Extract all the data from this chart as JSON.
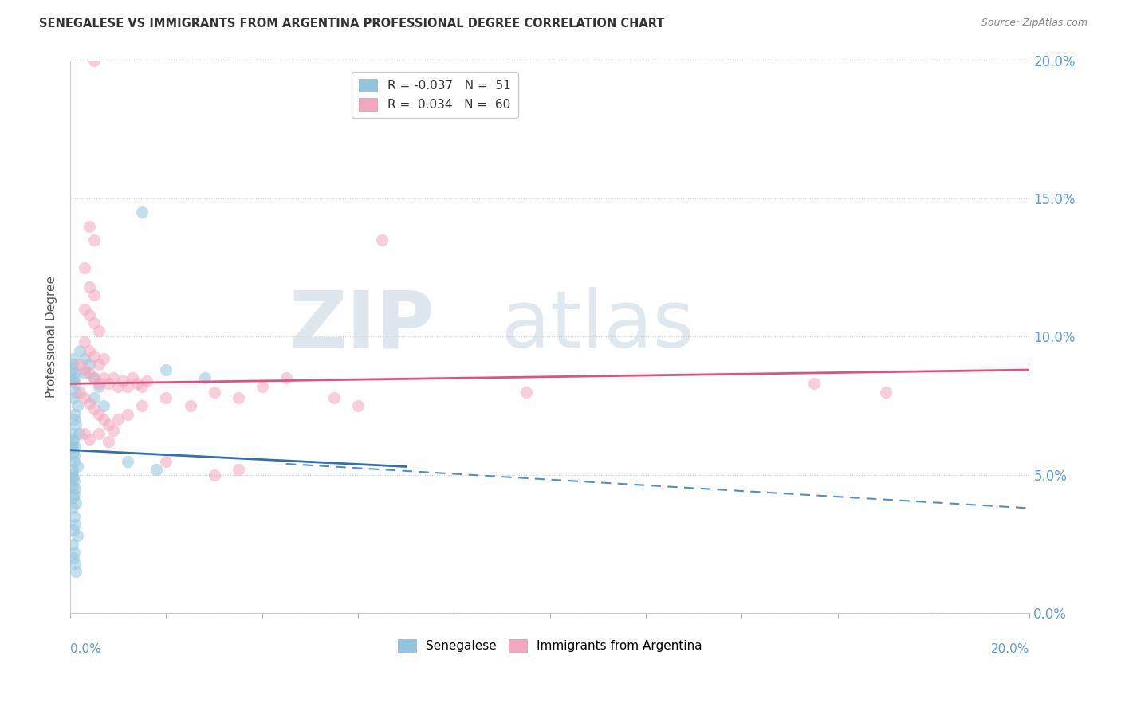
{
  "title": "SENEGALESE VS IMMIGRANTS FROM ARGENTINA PROFESSIONAL DEGREE CORRELATION CHART",
  "source": "Source: ZipAtlas.com",
  "ylabel": "Professional Degree",
  "ytick_vals": [
    0,
    5,
    10,
    15,
    20
  ],
  "watermark_zip": "ZIP",
  "watermark_atlas": "atlas",
  "blue_color": "#92c5de",
  "pink_color": "#f4a6be",
  "blue_scatter": [
    [
      0.05,
      8.8
    ],
    [
      0.08,
      8.5
    ],
    [
      0.1,
      8.3
    ],
    [
      0.12,
      8.0
    ],
    [
      0.06,
      7.8
    ],
    [
      0.15,
      7.5
    ],
    [
      0.1,
      7.2
    ],
    [
      0.08,
      7.0
    ],
    [
      0.12,
      6.8
    ],
    [
      0.18,
      6.5
    ],
    [
      0.05,
      6.2
    ],
    [
      0.1,
      6.0
    ],
    [
      0.06,
      5.8
    ],
    [
      0.08,
      5.5
    ],
    [
      0.15,
      5.3
    ],
    [
      0.05,
      5.0
    ],
    [
      0.08,
      4.8
    ],
    [
      0.1,
      4.5
    ],
    [
      0.06,
      4.2
    ],
    [
      0.12,
      4.0
    ],
    [
      0.05,
      3.8
    ],
    [
      0.08,
      3.5
    ],
    [
      0.1,
      3.2
    ],
    [
      0.06,
      3.0
    ],
    [
      0.15,
      2.8
    ],
    [
      0.05,
      2.5
    ],
    [
      0.08,
      2.2
    ],
    [
      0.06,
      2.0
    ],
    [
      0.1,
      1.8
    ],
    [
      0.12,
      1.5
    ],
    [
      0.05,
      9.2
    ],
    [
      0.06,
      9.0
    ],
    [
      0.08,
      8.7
    ],
    [
      0.04,
      8.4
    ],
    [
      0.05,
      6.5
    ],
    [
      0.06,
      6.3
    ],
    [
      0.04,
      6.0
    ],
    [
      0.08,
      5.7
    ],
    [
      0.05,
      5.2
    ],
    [
      0.06,
      4.9
    ],
    [
      0.04,
      4.6
    ],
    [
      0.08,
      4.3
    ],
    [
      0.2,
      9.5
    ],
    [
      0.3,
      9.2
    ],
    [
      0.4,
      9.0
    ],
    [
      0.3,
      8.7
    ],
    [
      0.5,
      8.5
    ],
    [
      0.6,
      8.2
    ],
    [
      0.5,
      7.8
    ],
    [
      0.7,
      7.5
    ],
    [
      1.5,
      14.5
    ],
    [
      2.0,
      8.8
    ],
    [
      2.8,
      8.5
    ],
    [
      1.2,
      5.5
    ],
    [
      1.8,
      5.2
    ]
  ],
  "pink_scatter": [
    [
      0.5,
      20.0
    ],
    [
      0.4,
      14.0
    ],
    [
      0.5,
      13.5
    ],
    [
      0.3,
      12.5
    ],
    [
      0.4,
      11.8
    ],
    [
      0.5,
      11.5
    ],
    [
      0.3,
      11.0
    ],
    [
      0.4,
      10.8
    ],
    [
      0.5,
      10.5
    ],
    [
      0.6,
      10.2
    ],
    [
      0.3,
      9.8
    ],
    [
      0.4,
      9.5
    ],
    [
      0.5,
      9.3
    ],
    [
      0.6,
      9.0
    ],
    [
      0.7,
      9.2
    ],
    [
      0.2,
      9.0
    ],
    [
      0.3,
      8.8
    ],
    [
      0.4,
      8.7
    ],
    [
      0.5,
      8.5
    ],
    [
      0.6,
      8.3
    ],
    [
      0.7,
      8.5
    ],
    [
      0.8,
      8.3
    ],
    [
      0.9,
      8.5
    ],
    [
      1.0,
      8.2
    ],
    [
      1.1,
      8.4
    ],
    [
      1.2,
      8.2
    ],
    [
      1.3,
      8.5
    ],
    [
      1.4,
      8.3
    ],
    [
      1.5,
      8.2
    ],
    [
      1.6,
      8.4
    ],
    [
      0.2,
      8.0
    ],
    [
      0.3,
      7.8
    ],
    [
      0.4,
      7.6
    ],
    [
      0.5,
      7.4
    ],
    [
      0.6,
      7.2
    ],
    [
      0.7,
      7.0
    ],
    [
      0.8,
      6.8
    ],
    [
      0.9,
      6.6
    ],
    [
      1.0,
      7.0
    ],
    [
      1.2,
      7.2
    ],
    [
      1.5,
      7.5
    ],
    [
      2.0,
      7.8
    ],
    [
      2.5,
      7.5
    ],
    [
      3.0,
      8.0
    ],
    [
      3.5,
      7.8
    ],
    [
      4.0,
      8.2
    ],
    [
      4.5,
      8.5
    ],
    [
      0.3,
      6.5
    ],
    [
      0.4,
      6.3
    ],
    [
      0.6,
      6.5
    ],
    [
      0.8,
      6.2
    ],
    [
      2.0,
      5.5
    ],
    [
      3.0,
      5.0
    ],
    [
      3.5,
      5.2
    ],
    [
      5.5,
      7.8
    ],
    [
      6.0,
      7.5
    ],
    [
      6.5,
      13.5
    ],
    [
      9.5,
      8.0
    ],
    [
      15.5,
      8.3
    ],
    [
      17.0,
      8.0
    ]
  ],
  "pink_trend_x": [
    0.0,
    20.0
  ],
  "pink_trend_y": [
    8.3,
    8.8
  ],
  "blue_solid_trend_x": [
    0.0,
    7.0
  ],
  "blue_solid_trend_y": [
    5.9,
    5.3
  ],
  "blue_dash_trend_x": [
    4.5,
    20.0
  ],
  "blue_dash_trend_y": [
    5.4,
    3.8
  ],
  "xmin": 0.0,
  "xmax": 20.0,
  "ymin": 0.0,
  "ymax": 20.0
}
